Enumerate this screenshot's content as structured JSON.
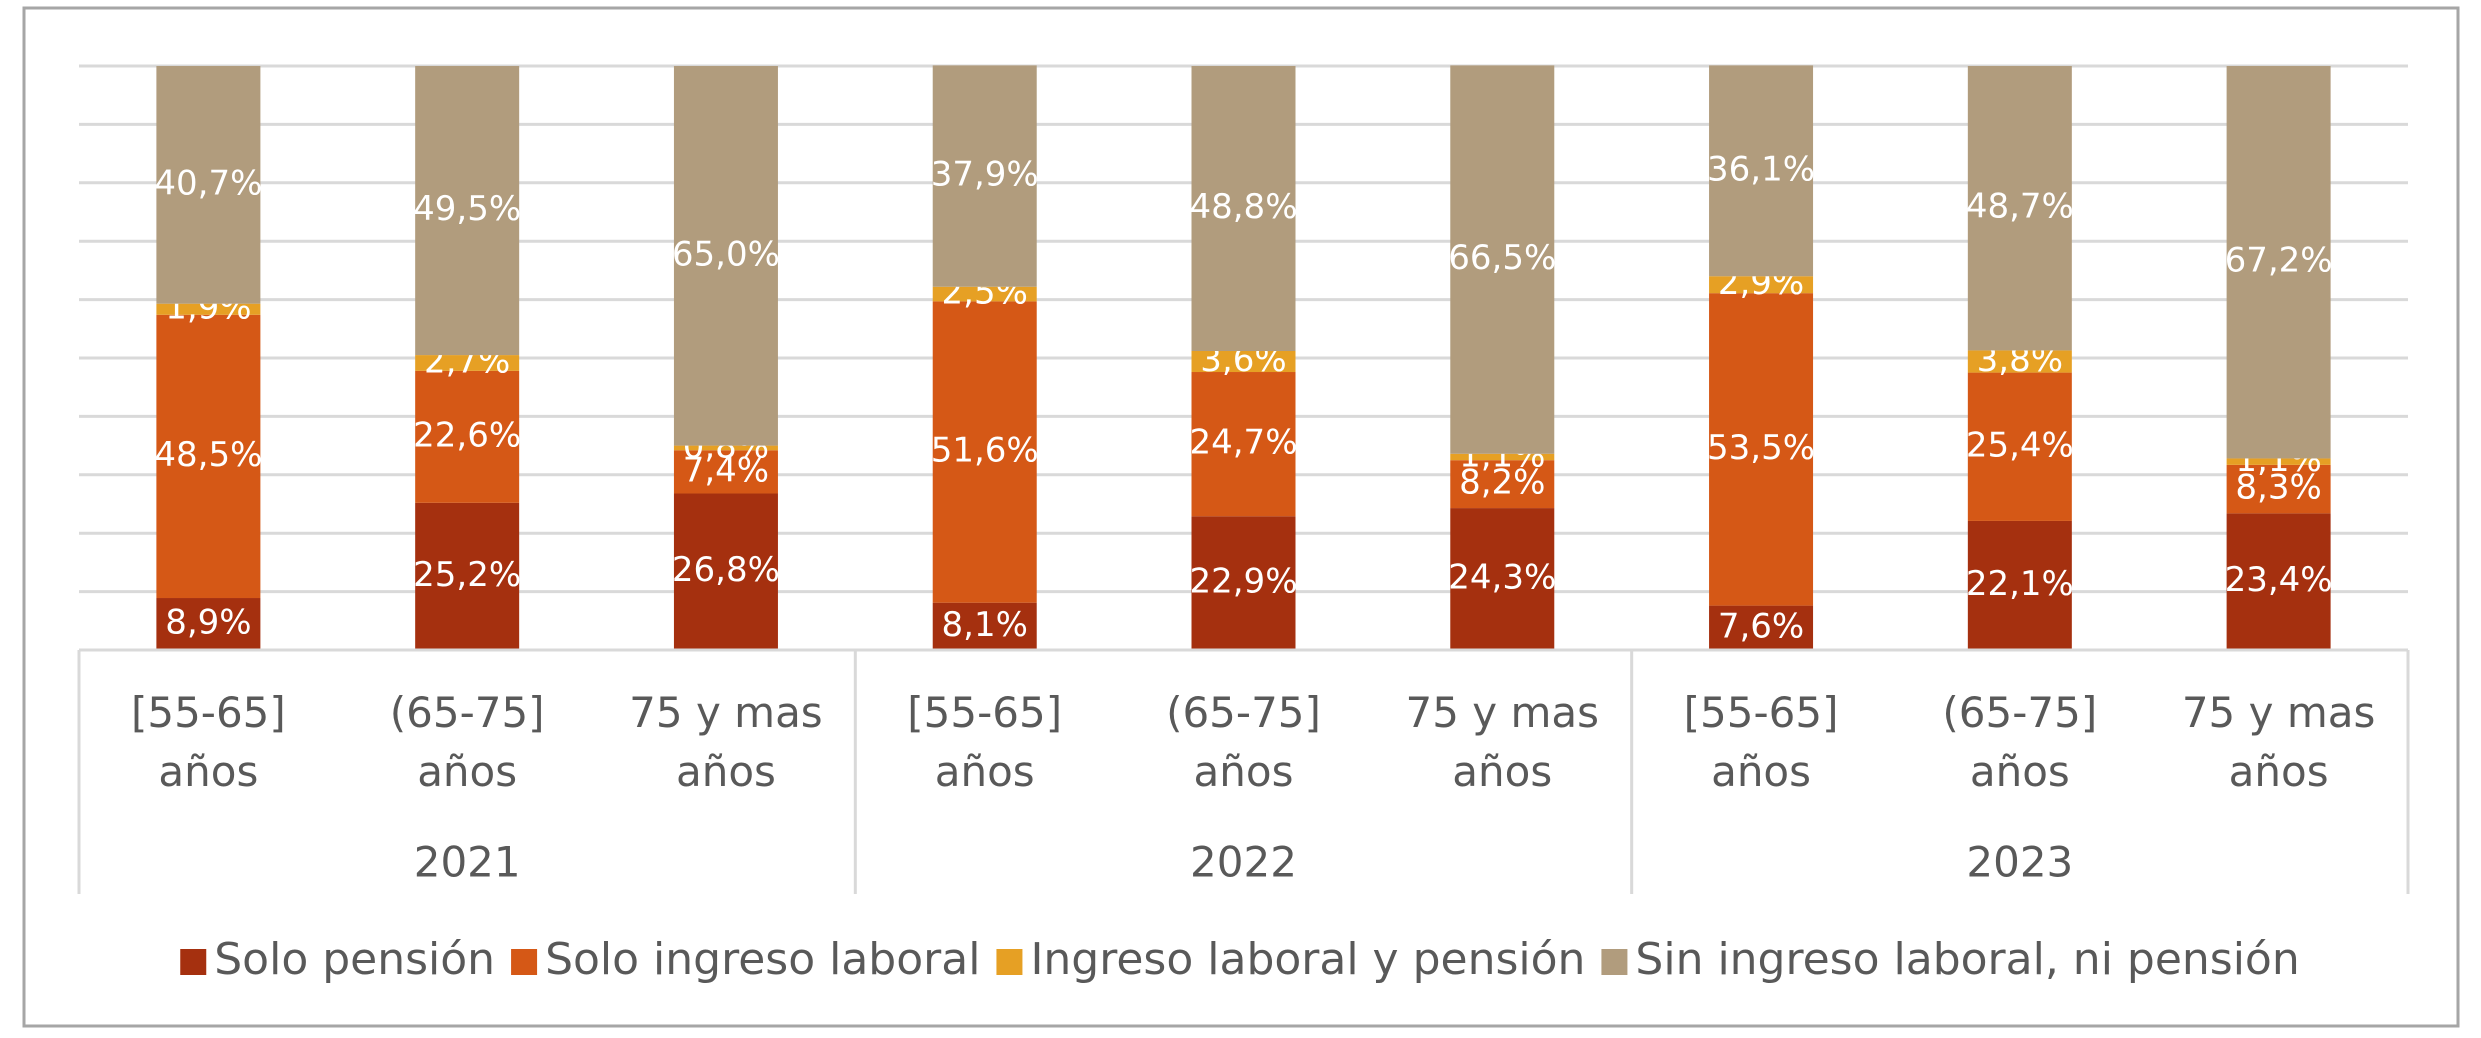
{
  "chart_data": {
    "type": "stacked_bar",
    "groups": [
      "2021",
      "2022",
      "2023"
    ],
    "categories": [
      "[55-65] años",
      "(65-75] años",
      "75 y mas años",
      "[55-65] años",
      "(65-75] años",
      "75 y mas años",
      "[55-65] años",
      "(65-75] años",
      "75 y mas años"
    ],
    "series": [
      {
        "name": "Solo pensión",
        "color": "#a5300f",
        "values": [
          8.9,
          25.2,
          26.8,
          8.1,
          22.9,
          24.3,
          7.6,
          22.1,
          23.4
        ],
        "value_labels": [
          "8,9%",
          "25,2%",
          "26,8%",
          "8,1%",
          "22,9%",
          "24,3%",
          "7,6%",
          "22,1%",
          "23,4%"
        ]
      },
      {
        "name": "Solo ingreso laboral",
        "color": "#d55816",
        "values": [
          48.5,
          22.6,
          7.4,
          51.6,
          24.7,
          8.2,
          53.5,
          25.4,
          8.3
        ],
        "value_labels": [
          "48,5%",
          "22,6%",
          "7,4%",
          "51,6%",
          "24,7%",
          "8,2%",
          "53,5%",
          "25,4%",
          "8,3%"
        ]
      },
      {
        "name": "Ingreso laboral y pensión",
        "color": "#e6a024",
        "values": [
          1.9,
          2.7,
          0.8,
          2.5,
          3.6,
          1.1,
          2.9,
          3.8,
          1.1
        ],
        "value_labels": [
          "1,9%",
          "2,7%",
          "0,8%",
          "2,5%",
          "3,6%",
          "1,1%",
          "2,9%",
          "3,8%",
          "1,1%"
        ]
      },
      {
        "name": "Sin ingreso laboral, ni pensión",
        "color": "#b19c7d",
        "values": [
          40.7,
          49.5,
          65.0,
          37.9,
          48.8,
          66.5,
          36.1,
          48.7,
          67.2
        ],
        "value_labels": [
          "40,7%",
          "49,5%",
          "65,0%",
          "37,9%",
          "48,8%",
          "66,5%",
          "36,1%",
          "48,7%",
          "67,2%"
        ]
      }
    ],
    "ylim": [
      0,
      100
    ],
    "yticks": [
      0,
      10,
      20,
      30,
      40,
      50,
      60,
      70,
      80,
      90,
      100
    ],
    "grid": true,
    "show_tick_labels": false,
    "legend": "bottom"
  }
}
